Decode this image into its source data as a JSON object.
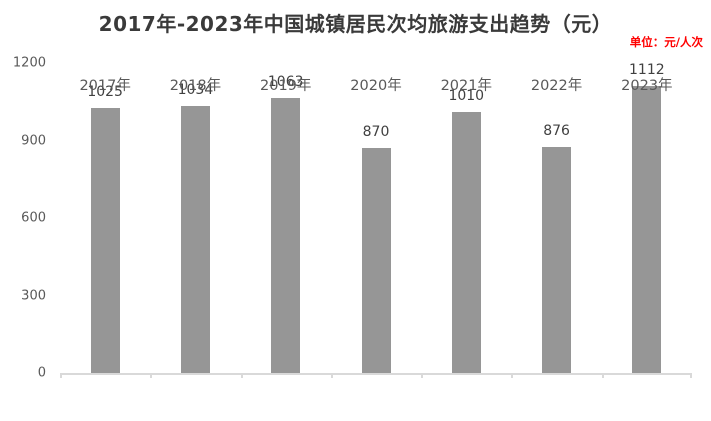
{
  "title": "2017年-2023年中国城镇居民次均旅游支出趋势（元）",
  "unit_label": "单位：元/人次",
  "colors": {
    "background": "#ffffff",
    "bar": "#969696",
    "title_text": "#3a3a3a",
    "value_label_text": "#404040",
    "axis_label_text": "#595959",
    "unit_label_text": "#ff0000",
    "axis_line": "#d9d9d9"
  },
  "chart_data": {
    "type": "bar",
    "title": "2017年-2023年中国城镇居民次均旅游支出趋势（元）",
    "categories": [
      "2017年",
      "2018年",
      "2019年",
      "2020年",
      "2021年",
      "2022年",
      "2023年"
    ],
    "values": [
      1025,
      1034,
      1063,
      870,
      1010,
      876,
      1112
    ],
    "xlabel": "",
    "ylabel": "元/人次",
    "ylim": [
      0,
      1200
    ],
    "yticks": [
      0,
      300,
      600,
      900,
      1200
    ],
    "grid": false,
    "legend": false,
    "data_labels": true,
    "bar_color": "#969696"
  }
}
